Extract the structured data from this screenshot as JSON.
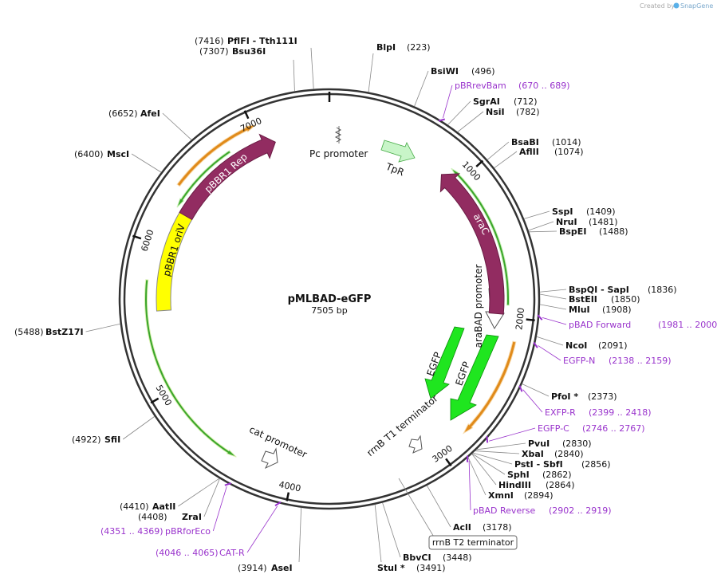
{
  "credit": {
    "text": "Created by",
    "brand": "SnapGene"
  },
  "plasmid": {
    "name": "pMLBAD-eGFP",
    "size": "7505 bp"
  },
  "ticks": [
    1000,
    2000,
    3000,
    4000,
    5000,
    6000,
    7000
  ],
  "sites": [
    {
      "name": "PflFI  - Tth111I",
      "position": "(7416)"
    },
    {
      "name": "Bsu36I",
      "position": "(7307)"
    },
    {
      "name": "BlpI",
      "position": "(223)"
    },
    {
      "name": "BsiWI",
      "position": "(496)"
    },
    {
      "name": "SgrAI",
      "position": "(712)"
    },
    {
      "name": "NsiI",
      "position": "(782)"
    },
    {
      "name": "BsaBI",
      "position": "(1014)"
    },
    {
      "name": "AflII",
      "position": "(1074)"
    },
    {
      "name": "SspI",
      "position": "(1409)"
    },
    {
      "name": "NruI",
      "position": "(1481)"
    },
    {
      "name": "BspEI",
      "position": "(1488)"
    },
    {
      "name": "BspQI  - SapI",
      "position": "(1836)"
    },
    {
      "name": "BstEII",
      "position": "(1850)"
    },
    {
      "name": "MluI",
      "position": "(1908)"
    },
    {
      "name": "NcoI",
      "position": "(2091)"
    },
    {
      "name": "PfoI *",
      "position": "(2373)"
    },
    {
      "name": "PvuI",
      "position": "(2830)"
    },
    {
      "name": "XbaI",
      "position": "(2840)"
    },
    {
      "name": "PstI  - SbfI",
      "position": "(2856)"
    },
    {
      "name": "SphI",
      "position": "(2862)"
    },
    {
      "name": "HindIII",
      "position": "(2864)"
    },
    {
      "name": "XmnI",
      "position": "(2894)"
    },
    {
      "name": "AclI",
      "position": "(3178)"
    },
    {
      "name": "BbvCI",
      "position": "(3448)"
    },
    {
      "name": "StuI *",
      "position": "(3491)"
    },
    {
      "name": "AseI",
      "position": "(3914)"
    },
    {
      "name": "ZraI",
      "position": "(4408)"
    },
    {
      "name": "AatII",
      "position": "(4410)"
    },
    {
      "name": "SfiI",
      "position": "(4922)"
    },
    {
      "name": "BstZ17I",
      "position": "(5488)"
    },
    {
      "name": "MscI",
      "position": "(6400)"
    },
    {
      "name": "AfeI",
      "position": "(6652)"
    }
  ],
  "primers": [
    {
      "name": "pBRrevBam",
      "position": "(670 .. 689)"
    },
    {
      "name": "pBAD Forward",
      "position": "(1981 .. 2000)"
    },
    {
      "name": "EGFP-N",
      "position": "(2138 .. 2159)"
    },
    {
      "name": "EXFP-R",
      "position": "(2399 .. 2418)"
    },
    {
      "name": "EGFP-C",
      "position": "(2746 .. 2767)"
    },
    {
      "name": "pBAD Reverse",
      "position": "(2902 .. 2919)"
    },
    {
      "name": "CAT-R",
      "position": "(4046 .. 4065)"
    },
    {
      "name": "pBRforEco",
      "position": "(4351 .. 4369)"
    }
  ],
  "features": [
    "Pc promoter",
    "TpR",
    "araC",
    "araBAD promoter",
    "EGFP",
    "EGFP",
    "rrnB T1 terminator",
    "cat promoter",
    "pBBR1 Rep",
    "pBBR1 oriV"
  ],
  "boxed_label": "rrnB T2 terminator"
}
